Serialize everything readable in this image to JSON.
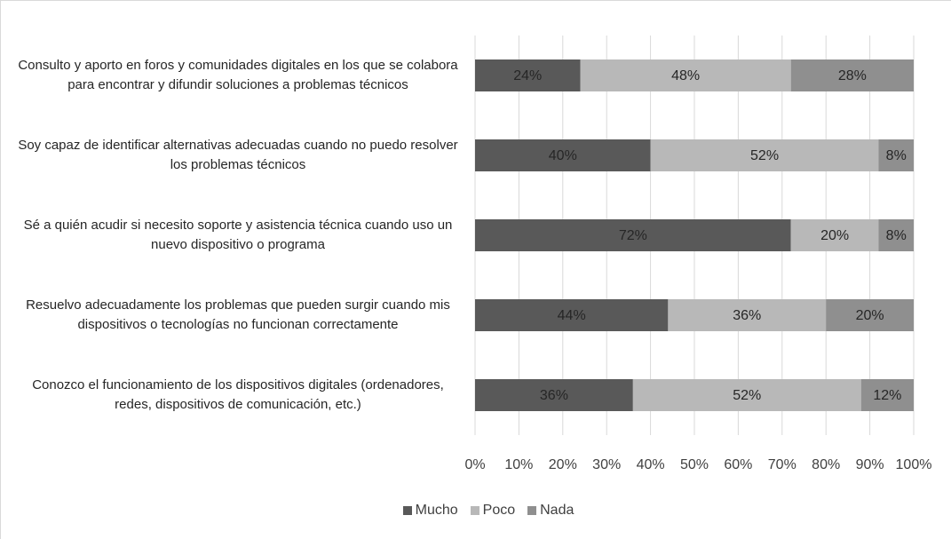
{
  "chart_data": {
    "type": "stacked-barh",
    "categories": [
      "Consulto y aporto en foros y comunidades digitales en los que se colabora para encontrar y difundir soluciones a problemas técnicos",
      "Soy capaz de identificar alternativas adecuadas cuando no puedo resolver los problemas técnicos",
      "Sé a quién acudir si necesito soporte y asistencia técnica cuando uso un nuevo dispositivo o programa",
      "Resuelvo adecuadamente los problemas que pueden surgir cuando mis dispositivos o tecnologías no funcionan correctamente",
      "Conozco el funcionamiento de los dispositivos digitales (ordenadores, redes, dispositivos de comunicación, etc.)"
    ],
    "series": [
      {
        "name": "Mucho",
        "color": "#595959",
        "values": [
          24,
          40,
          72,
          44,
          36
        ],
        "value_labels": [
          "24%",
          "40%",
          "72%",
          "44%",
          "36%"
        ]
      },
      {
        "name": "Poco",
        "color": "#b8b8b8",
        "values": [
          48,
          52,
          20,
          36,
          52
        ],
        "value_labels": [
          "48%",
          "52%",
          "20%",
          "36%",
          "52%"
        ]
      },
      {
        "name": "Nada",
        "color": "#8f8f8f",
        "values": [
          28,
          8,
          8,
          20,
          12
        ],
        "value_labels": [
          "28%",
          "8%",
          "8%",
          "20%",
          "12%"
        ]
      }
    ],
    "xlim": [
      0,
      100
    ],
    "xticks": [
      {
        "value": 0,
        "label": "0%"
      },
      {
        "value": 10,
        "label": "10%"
      },
      {
        "value": 20,
        "label": "20%"
      },
      {
        "value": 30,
        "label": "30%"
      },
      {
        "value": 40,
        "label": "40%"
      },
      {
        "value": 50,
        "label": "50%"
      },
      {
        "value": 60,
        "label": "60%"
      },
      {
        "value": 70,
        "label": "70%"
      },
      {
        "value": 80,
        "label": "80%"
      },
      {
        "value": 90,
        "label": "90%"
      },
      {
        "value": 100,
        "label": "100%"
      }
    ],
    "grid": true,
    "legend": "bottom"
  }
}
